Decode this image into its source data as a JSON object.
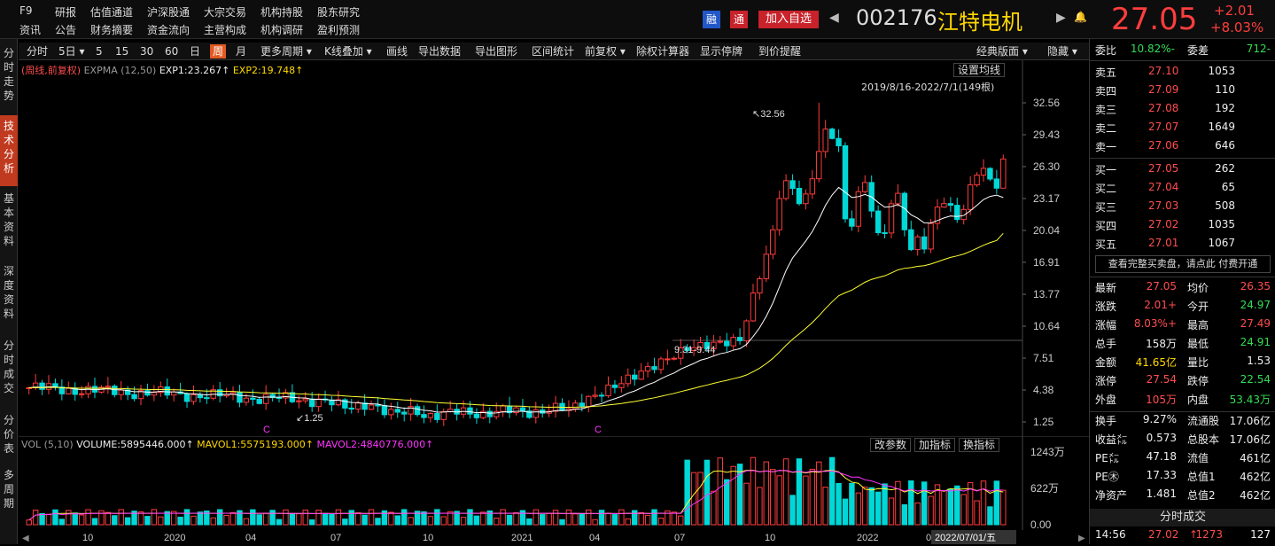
{
  "nav": {
    "row1": [
      "F9",
      "研报",
      "估值通道",
      "沪深股通",
      "大宗交易",
      "机构持股",
      "股东研究"
    ],
    "row2": [
      "资讯",
      "公告",
      "财务摘要",
      "资金流向",
      "主营构成",
      "机构调研",
      "盈利预测"
    ]
  },
  "header": {
    "rong": "融",
    "tong": "通",
    "add_watch": "加入自选",
    "code": "002176",
    "name": "江特电机",
    "price": "27.05",
    "change": "+2.01",
    "change_pct": "+8.03%"
  },
  "sidetabs": [
    "分时走势",
    "技术分析",
    "基本资料",
    "深度资料",
    "分时成交",
    "分价表",
    "多周期"
  ],
  "toolbar": {
    "items": [
      "分时",
      "5日",
      "5",
      "15",
      "30",
      "60",
      "日",
      "周",
      "月",
      "更多周期",
      "K线叠加",
      "画线",
      "导出数据",
      "导出图形",
      "区间统计",
      "前复权",
      "除权计算器",
      "显示停牌",
      "到价提醒"
    ],
    "active": "周",
    "layout": "经典版面",
    "hide": "隐藏"
  },
  "main_chart": {
    "mode": "(周线,前复权)",
    "indicator": "EXPMA (12,50)",
    "exp1": "EXP1:23.267↑",
    "exp2": "EXP2:19.748↑",
    "settings": "设置均线",
    "range": "2019/8/16-2022/7/1(149根)",
    "high_label": "32.56",
    "range_label": "9.31-9.44",
    "low_label": "1.25",
    "y_ticks": [
      "32.56",
      "29.43",
      "26.30",
      "23.17",
      "20.04",
      "16.91",
      "13.77",
      "10.64",
      "7.51",
      "4.38",
      "1.25"
    ],
    "marker": "C"
  },
  "vol_chart": {
    "title": "VOL (5,10)",
    "volume": "VOLUME:5895446.000↑",
    "mavol1": "MAVOL1:5575193.000↑",
    "mavol2": "MAVOL2:4840776.000↑",
    "btns": [
      "改参数",
      "加指标",
      "换指标"
    ],
    "y_ticks": [
      "1243万",
      "622万",
      "0.00"
    ]
  },
  "x_axis": {
    "labels": [
      "10",
      "2020",
      "04",
      "07",
      "10",
      "2021",
      "04",
      "07",
      "10",
      "2022",
      "0"
    ],
    "cursor_date": "2022/07/01/五"
  },
  "chart_data": [
    {
      "type": "candlestick",
      "title": "002176 江特电机 周线",
      "ylim": [
        1.25,
        32.56
      ],
      "high": 32.56,
      "low": 1.25,
      "exp1": 23.267,
      "exp2": 19.748
    },
    {
      "type": "bar",
      "title": "VOL (5,10)",
      "ylim": [
        0,
        12430000
      ],
      "last": 5895446,
      "mavol1": 5575193,
      "mavol2": 4840776
    }
  ],
  "order_book": {
    "weibi_label": "委比",
    "weibi": "-10.82%",
    "weicha_label": "委差",
    "weicha": "-712",
    "sell": [
      {
        "l": "卖五",
        "p": "27.10",
        "v": "1053"
      },
      {
        "l": "卖四",
        "p": "27.09",
        "v": "110"
      },
      {
        "l": "卖三",
        "p": "27.08",
        "v": "192"
      },
      {
        "l": "卖二",
        "p": "27.07",
        "v": "1649"
      },
      {
        "l": "卖一",
        "p": "27.06",
        "v": "646"
      }
    ],
    "buy": [
      {
        "l": "买一",
        "p": "27.05",
        "v": "262"
      },
      {
        "l": "买二",
        "p": "27.04",
        "v": "65"
      },
      {
        "l": "买三",
        "p": "27.03",
        "v": "508"
      },
      {
        "l": "买四",
        "p": "27.02",
        "v": "1035"
      },
      {
        "l": "买五",
        "p": "27.01",
        "v": "1067"
      }
    ],
    "full_link": "查看完整买卖盘，请点此 付费开通"
  },
  "stats": [
    [
      "最新",
      "27.05",
      "red",
      "均价",
      "26.35",
      "red"
    ],
    [
      "涨跌",
      "+2.01",
      "red",
      "今开",
      "24.97",
      "green"
    ],
    [
      "涨幅",
      "+8.03%",
      "red",
      "最高",
      "27.49",
      "red"
    ],
    [
      "总手",
      "158万",
      "white",
      "最低",
      "24.91",
      "green"
    ],
    [
      "金额",
      "41.65亿",
      "yellow",
      "量比",
      "1.53",
      "white"
    ],
    [
      "涨停",
      "27.54",
      "red",
      "跌停",
      "22.54",
      "green"
    ],
    [
      "外盘",
      "105万",
      "red",
      "内盘",
      "53.43万",
      "green"
    ]
  ],
  "stats2": [
    [
      "换手",
      "9.27%",
      "流通股",
      "17.06亿"
    ],
    [
      "收益㍍",
      "0.573",
      "总股本",
      "17.06亿"
    ],
    [
      "PE㍍",
      "47.18",
      "流值",
      "461亿"
    ],
    [
      "PE㊍",
      "17.33",
      "总值1",
      "462亿"
    ],
    [
      "净资产",
      "1.481",
      "总值2",
      "462亿"
    ]
  ],
  "trades": {
    "title": "分时成交",
    "time": "14:56",
    "price": "27.02",
    "arrow": "↑",
    "vol": "1273",
    "count": "127"
  }
}
